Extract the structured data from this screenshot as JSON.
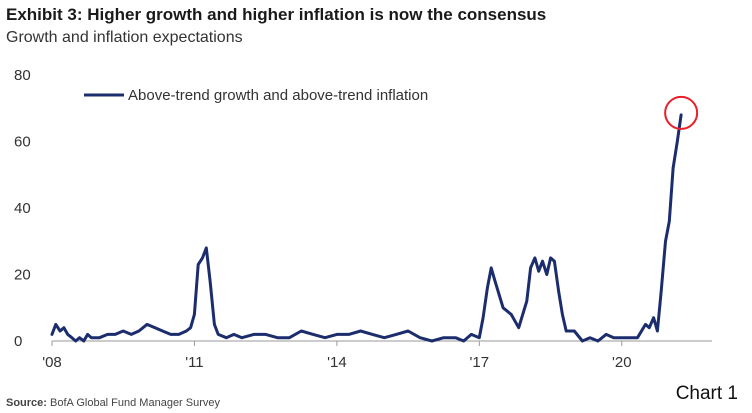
{
  "title": "Exhibit 3: Higher growth and higher inflation is now the consensus",
  "subtitle": "Growth and inflation expectations",
  "source_label": "Source:",
  "source_text": "BofA Global Fund Manager Survey",
  "chart_number": "Chart 1",
  "colors": {
    "line": "#1c2d6e",
    "highlight": "#e8202a",
    "axis": "#9a9a9a"
  },
  "chart_data": {
    "type": "line",
    "title": "Exhibit 3: Higher growth and higher inflation is now the consensus",
    "subtitle": "Growth and inflation expectations",
    "xlabel": "",
    "ylabel": "",
    "xlim": [
      2008,
      2021.9
    ],
    "ylim": [
      0,
      80
    ],
    "y_ticks": [
      0,
      20,
      40,
      60,
      80
    ],
    "x_ticks": [
      {
        "value": 2008,
        "label": "'08"
      },
      {
        "value": 2011,
        "label": "'11"
      },
      {
        "value": 2014,
        "label": "'14"
      },
      {
        "value": 2017,
        "label": "'17"
      },
      {
        "value": 2020,
        "label": "'20"
      }
    ],
    "grid": false,
    "legend": "top-left",
    "highlight": {
      "shape": "circle",
      "x": 2021.25,
      "y": 68
    },
    "series": [
      {
        "name": "Above-trend growth and above-trend inflation",
        "x": [
          2008.0,
          2008.08,
          2008.17,
          2008.25,
          2008.33,
          2008.42,
          2008.5,
          2008.58,
          2008.67,
          2008.75,
          2008.83,
          2008.92,
          2009.0,
          2009.17,
          2009.33,
          2009.5,
          2009.67,
          2009.83,
          2010.0,
          2010.17,
          2010.33,
          2010.5,
          2010.67,
          2010.83,
          2010.92,
          2011.0,
          2011.08,
          2011.17,
          2011.25,
          2011.33,
          2011.42,
          2011.5,
          2011.67,
          2011.83,
          2012.0,
          2012.25,
          2012.5,
          2012.75,
          2013.0,
          2013.25,
          2013.5,
          2013.75,
          2014.0,
          2014.25,
          2014.5,
          2014.75,
          2015.0,
          2015.25,
          2015.5,
          2015.75,
          2016.0,
          2016.25,
          2016.5,
          2016.67,
          2016.83,
          2017.0,
          2017.08,
          2017.17,
          2017.25,
          2017.33,
          2017.5,
          2017.67,
          2017.83,
          2018.0,
          2018.08,
          2018.17,
          2018.25,
          2018.33,
          2018.42,
          2018.5,
          2018.58,
          2018.67,
          2018.75,
          2018.83,
          2019.0,
          2019.17,
          2019.33,
          2019.5,
          2019.67,
          2019.83,
          2020.0,
          2020.17,
          2020.33,
          2020.5,
          2020.58,
          2020.67,
          2020.75,
          2020.83,
          2020.92,
          2021.0,
          2021.08,
          2021.17,
          2021.25
        ],
        "y": [
          2,
          5,
          3,
          4,
          2,
          1,
          0,
          1,
          0,
          2,
          1,
          1,
          1,
          2,
          2,
          3,
          2,
          3,
          5,
          4,
          3,
          2,
          2,
          3,
          4,
          8,
          23,
          25,
          28,
          18,
          5,
          2,
          1,
          2,
          1,
          2,
          2,
          1,
          1,
          3,
          2,
          1,
          2,
          2,
          3,
          2,
          1,
          2,
          3,
          1,
          0,
          1,
          1,
          0,
          2,
          1,
          7,
          16,
          22,
          18,
          10,
          8,
          4,
          12,
          22,
          25,
          21,
          24,
          20,
          25,
          24,
          15,
          8,
          3,
          3,
          0,
          1,
          0,
          2,
          1,
          1,
          1,
          1,
          5,
          4,
          7,
          3,
          15,
          30,
          36,
          52,
          60,
          68
        ]
      }
    ]
  }
}
